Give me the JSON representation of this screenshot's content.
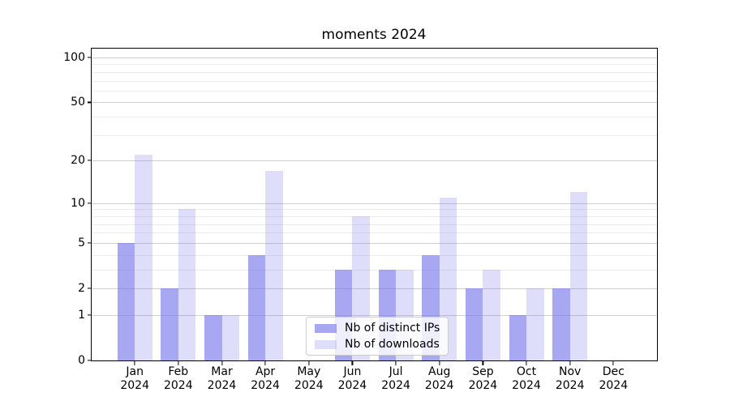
{
  "chart_data": {
    "type": "bar",
    "title": "moments 2024",
    "categories": [
      {
        "month": "Jan",
        "year": "2024"
      },
      {
        "month": "Feb",
        "year": "2024"
      },
      {
        "month": "Mar",
        "year": "2024"
      },
      {
        "month": "Apr",
        "year": "2024"
      },
      {
        "month": "May",
        "year": "2024"
      },
      {
        "month": "Jun",
        "year": "2024"
      },
      {
        "month": "Jul",
        "year": "2024"
      },
      {
        "month": "Aug",
        "year": "2024"
      },
      {
        "month": "Sep",
        "year": "2024"
      },
      {
        "month": "Oct",
        "year": "2024"
      },
      {
        "month": "Nov",
        "year": "2024"
      },
      {
        "month": "Dec",
        "year": "2024"
      }
    ],
    "series": [
      {
        "name": "Nb of distinct IPs",
        "color": "rgba(122,122,235,0.65)",
        "values": [
          5,
          2,
          1,
          4,
          0,
          3,
          3,
          4,
          2,
          1,
          2,
          0
        ]
      },
      {
        "name": "Nb of downloads",
        "color": "rgba(122,122,235,0.25)",
        "values": [
          22,
          9,
          1,
          17,
          0,
          8,
          3,
          11,
          3,
          2,
          12,
          0
        ]
      }
    ],
    "y_scale": "log1p",
    "ylim": [
      0,
      115
    ],
    "y_ticks": [
      0,
      1,
      2,
      5,
      10,
      20,
      50,
      100
    ],
    "y_tick_labels": [
      "0",
      "1",
      "2",
      "5",
      "10",
      "20",
      "50",
      "100"
    ],
    "y_minor_gridlines": [
      3,
      4,
      6,
      7,
      8,
      9,
      30,
      40,
      60,
      70,
      80,
      90
    ],
    "grid": true,
    "legend_position": "lower center",
    "xlabel": "",
    "ylabel": ""
  },
  "colors": {
    "ips_bar": "rgba(122,122,235,0.65)",
    "downloads_bar": "rgba(122,122,235,0.25)",
    "grid_major": "#cfcfcf",
    "grid_minor": "#ececec",
    "spine": "#000000",
    "background": "#ffffff"
  }
}
